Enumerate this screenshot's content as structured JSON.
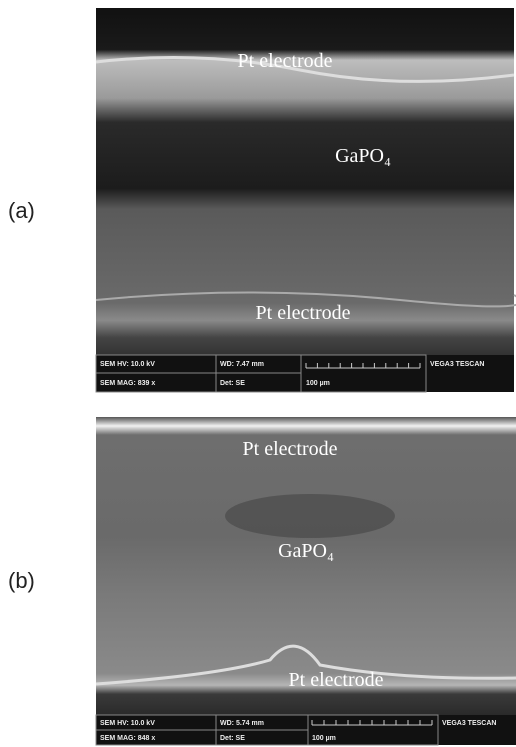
{
  "panels": [
    {
      "label": "(a)",
      "annotations": [
        "Pt electrode",
        "GaPO₄",
        "Pt electrode"
      ],
      "info_bar": {
        "hv": "SEM HV: 10.0 kV",
        "wd": "WD: 7.47 mm",
        "brand": "VEGA3 TESCAN",
        "mag": "SEM MAG: 839 x",
        "det": "Det: SE",
        "scale": "100 µm"
      }
    },
    {
      "label": "(b)",
      "annotations": [
        "Pt electrode",
        "GaPO₄",
        "Pt electrode"
      ],
      "info_bar": {
        "hv": "SEM HV: 10.0 kV",
        "wd": "WD: 5.74 mm",
        "brand": "VEGA3 TESCAN",
        "mag": "SEM MAG: 848 x",
        "det": "Det: SE",
        "scale": "100 µm"
      }
    }
  ]
}
